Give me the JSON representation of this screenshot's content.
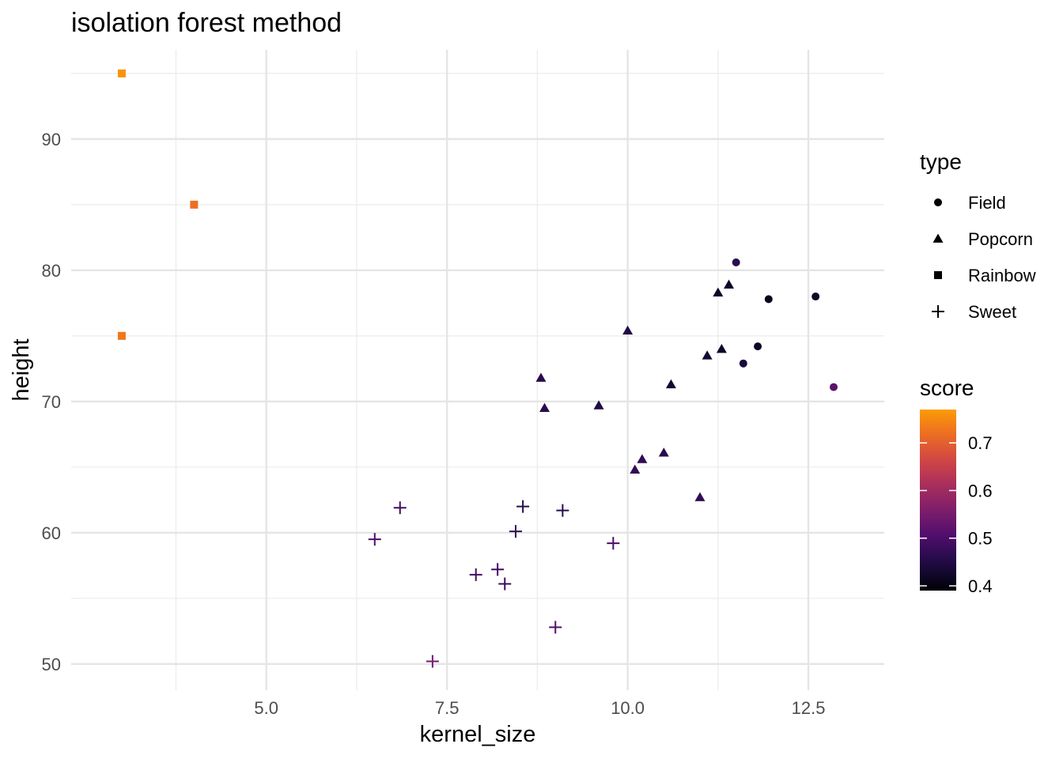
{
  "chart_data": {
    "type": "scatter",
    "title": "isolation forest method",
    "xlabel": "kernel_size",
    "ylabel": "height",
    "xlim": [
      2.3,
      13.55
    ],
    "ylim": [
      48,
      96.8
    ],
    "xticks": [
      5.0,
      7.5,
      10.0,
      12.5
    ],
    "xtick_labels": [
      "5.0",
      "7.5",
      "10.0",
      "12.5"
    ],
    "yticks": [
      50,
      60,
      70,
      80,
      90
    ],
    "ytick_labels": [
      "50",
      "60",
      "70",
      "80",
      "90"
    ],
    "grid": true,
    "legend_shape": {
      "title": "type",
      "placement": "right",
      "items": [
        {
          "label": "Field",
          "shape": "circle"
        },
        {
          "label": "Popcorn",
          "shape": "triangle"
        },
        {
          "label": "Rainbow",
          "shape": "square"
        },
        {
          "label": "Sweet",
          "shape": "plus"
        }
      ]
    },
    "legend_color": {
      "title": "score",
      "placement": "right",
      "range": [
        0.39,
        0.77
      ],
      "ticks": [
        0.4,
        0.5,
        0.6,
        0.7
      ],
      "tick_labels": [
        "0.4",
        "0.5",
        "0.6",
        "0.7"
      ],
      "colormap": "inferno"
    },
    "series": [
      {
        "name": "Field",
        "shape": "circle",
        "points": [
          {
            "x": 11.5,
            "y": 80.6,
            "score": 0.46
          },
          {
            "x": 11.95,
            "y": 77.8,
            "score": 0.41
          },
          {
            "x": 12.6,
            "y": 78.0,
            "score": 0.42
          },
          {
            "x": 11.8,
            "y": 74.2,
            "score": 0.42
          },
          {
            "x": 11.6,
            "y": 72.9,
            "score": 0.44
          },
          {
            "x": 12.85,
            "y": 71.1,
            "score": 0.52
          }
        ]
      },
      {
        "name": "Popcorn",
        "shape": "triangle",
        "points": [
          {
            "x": 11.4,
            "y": 78.9,
            "score": 0.42
          },
          {
            "x": 11.25,
            "y": 78.3,
            "score": 0.42
          },
          {
            "x": 10.0,
            "y": 75.4,
            "score": 0.45
          },
          {
            "x": 11.3,
            "y": 74.0,
            "score": 0.42
          },
          {
            "x": 11.1,
            "y": 73.5,
            "score": 0.43
          },
          {
            "x": 10.6,
            "y": 71.3,
            "score": 0.43
          },
          {
            "x": 8.8,
            "y": 71.8,
            "score": 0.46
          },
          {
            "x": 8.85,
            "y": 69.5,
            "score": 0.46
          },
          {
            "x": 9.6,
            "y": 69.7,
            "score": 0.45
          },
          {
            "x": 10.2,
            "y": 65.6,
            "score": 0.47
          },
          {
            "x": 10.5,
            "y": 66.1,
            "score": 0.46
          },
          {
            "x": 10.1,
            "y": 64.8,
            "score": 0.47
          },
          {
            "x": 11.0,
            "y": 62.7,
            "score": 0.47
          }
        ]
      },
      {
        "name": "Rainbow",
        "shape": "square",
        "points": [
          {
            "x": 3.0,
            "y": 95.0,
            "score": 0.76
          },
          {
            "x": 4.0,
            "y": 85.0,
            "score": 0.72
          },
          {
            "x": 3.0,
            "y": 75.0,
            "score": 0.73
          }
        ]
      },
      {
        "name": "Sweet",
        "shape": "plus",
        "points": [
          {
            "x": 6.5,
            "y": 59.5,
            "score": 0.5
          },
          {
            "x": 6.85,
            "y": 61.9,
            "score": 0.49
          },
          {
            "x": 7.3,
            "y": 50.2,
            "score": 0.55
          },
          {
            "x": 7.9,
            "y": 56.8,
            "score": 0.49
          },
          {
            "x": 8.2,
            "y": 57.2,
            "score": 0.49
          },
          {
            "x": 8.3,
            "y": 56.1,
            "score": 0.48
          },
          {
            "x": 8.45,
            "y": 60.1,
            "score": 0.47
          },
          {
            "x": 8.55,
            "y": 62.0,
            "score": 0.46
          },
          {
            "x": 9.1,
            "y": 61.7,
            "score": 0.46
          },
          {
            "x": 9.0,
            "y": 52.8,
            "score": 0.51
          },
          {
            "x": 9.8,
            "y": 59.2,
            "score": 0.5
          }
        ]
      }
    ]
  }
}
